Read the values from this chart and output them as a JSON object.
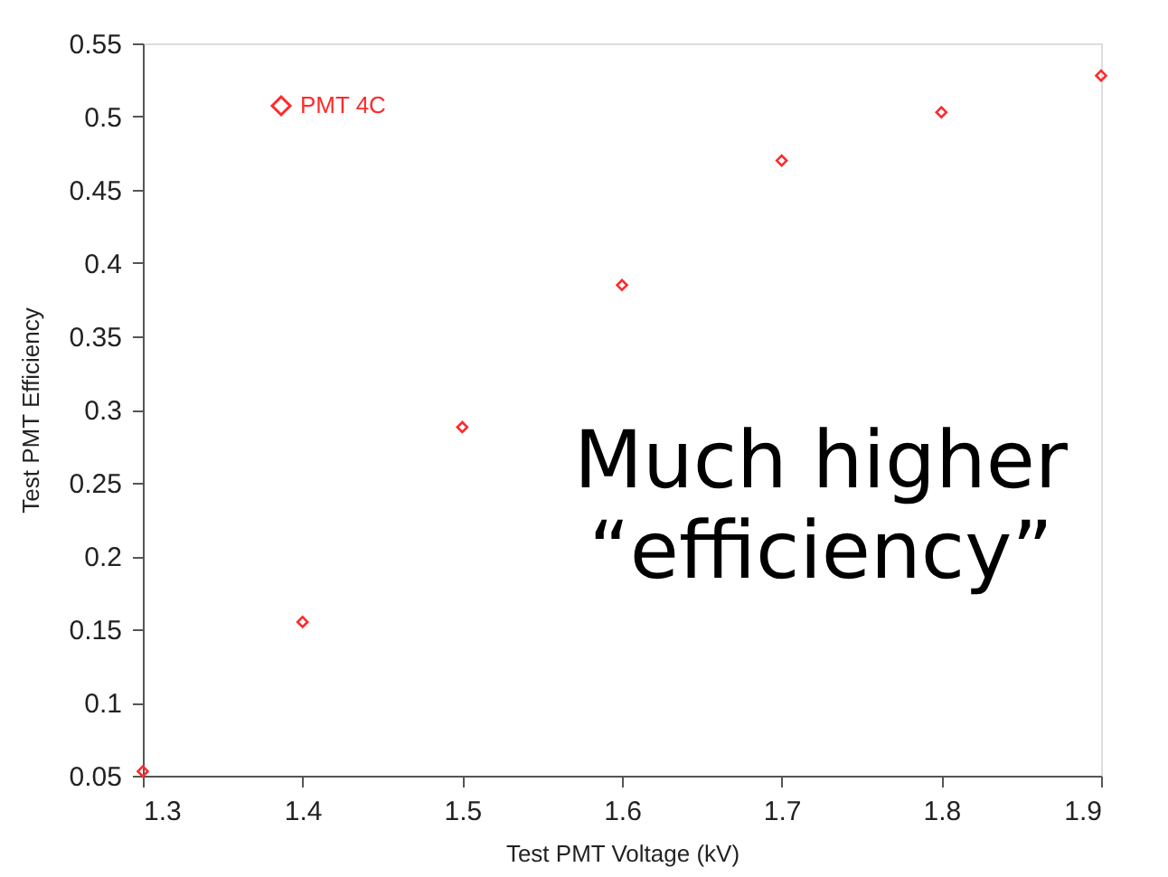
{
  "chart_data": {
    "type": "scatter",
    "xlabel": "Test PMT Voltage (kV)",
    "ylabel": "Test PMT Efficiency",
    "x": [
      1.3,
      1.4,
      1.5,
      1.6,
      1.7,
      1.8,
      1.9
    ],
    "series": [
      {
        "name": "PMT 4C",
        "color": "#ff2a2a",
        "values": [
          0.053,
          0.155,
          0.288,
          0.385,
          0.47,
          0.503,
          0.528
        ]
      }
    ],
    "xlim": [
      1.3,
      1.9
    ],
    "xticks": [
      1.3,
      1.4,
      1.5,
      1.6,
      1.7,
      1.8,
      1.9
    ],
    "ylim": [
      0.05,
      0.55
    ],
    "yticks": [
      0.05,
      0.1,
      0.15,
      0.2,
      0.25,
      0.3,
      0.35,
      0.4,
      0.45,
      0.5,
      0.55
    ],
    "marker": "diamond",
    "grid": false,
    "legend": "top left",
    "annotations": [
      "Much higher\n“efficiency”"
    ]
  }
}
